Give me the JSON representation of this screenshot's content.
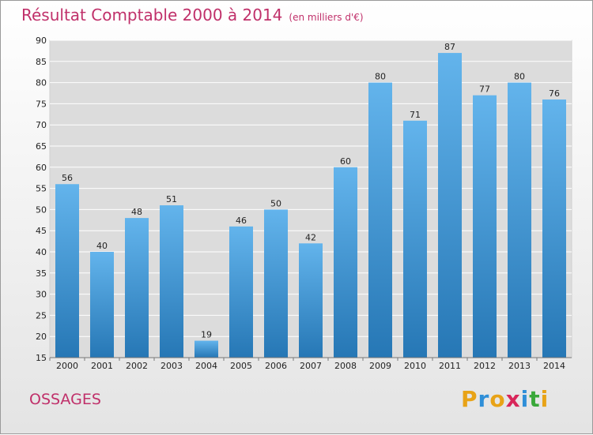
{
  "header": {
    "title": "Résultat Comptable 2000 à 2014",
    "unit": "(en milliers d'€)"
  },
  "footer": {
    "place": "OSSAGES",
    "logo": "Proxiti"
  },
  "colors": {
    "title": "#c0306a",
    "bar_top": "#63b4ec",
    "bar_bottom": "#2677b5",
    "grid": "#ffffff"
  },
  "chart_data": {
    "type": "bar",
    "categories": [
      "2000",
      "2001",
      "2002",
      "2003",
      "2004",
      "2005",
      "2006",
      "2007",
      "2008",
      "2009",
      "2010",
      "2011",
      "2012",
      "2013",
      "2014"
    ],
    "values": [
      56,
      40,
      48,
      51,
      19,
      46,
      50,
      42,
      60,
      80,
      71,
      87,
      77,
      80,
      76
    ],
    "ylim": [
      15,
      90
    ],
    "yticks": [
      15,
      20,
      25,
      30,
      35,
      40,
      45,
      50,
      55,
      60,
      65,
      70,
      75,
      80,
      85,
      90
    ],
    "grid": true,
    "legend": "none"
  }
}
